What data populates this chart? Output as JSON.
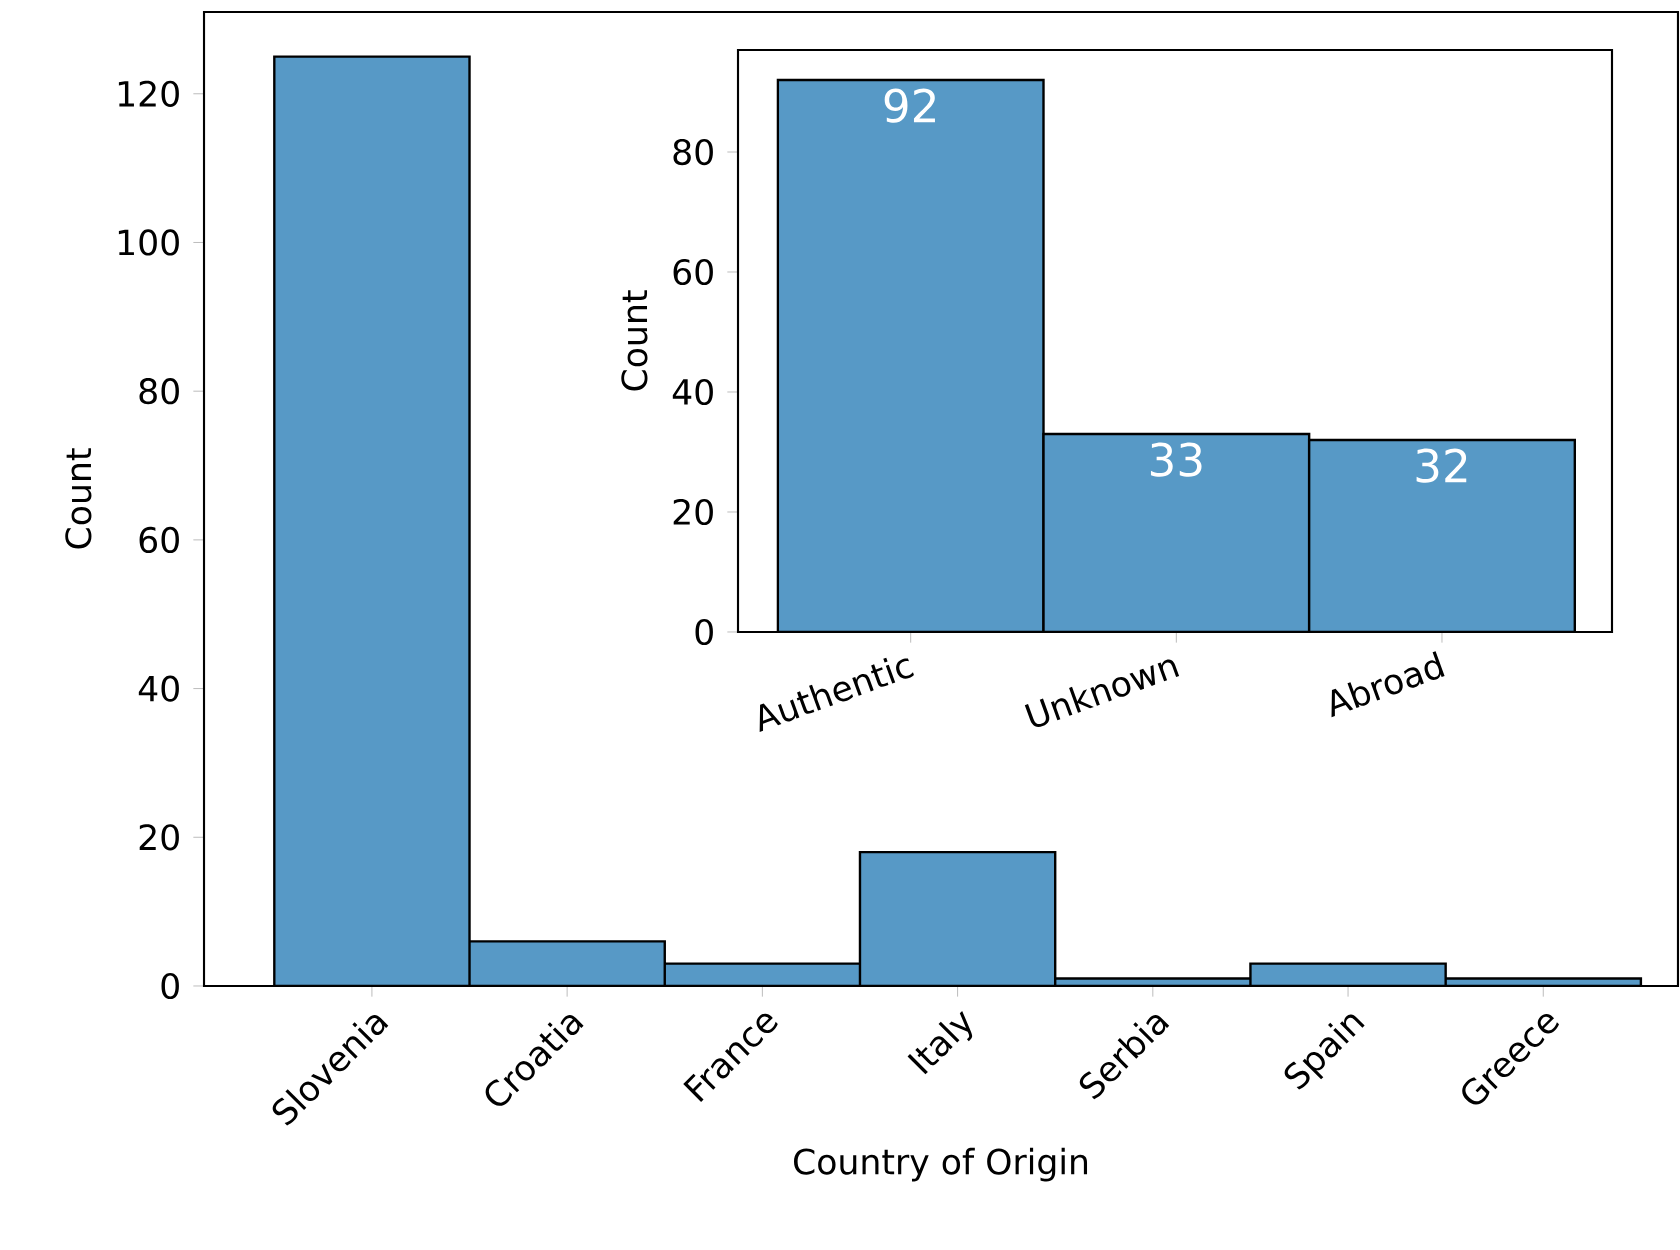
{
  "chart_data": [
    {
      "type": "bar",
      "xlabel": "Country of Origin",
      "ylabel": "Count",
      "categories": [
        "Slovenia",
        "Croatia",
        "France",
        "Italy",
        "Serbia",
        "Spain",
        "Greece"
      ],
      "values": [
        125,
        6,
        3,
        18,
        1,
        3,
        1
      ],
      "color": "#5799c6",
      "ylim": [
        0,
        131
      ],
      "yticks": [
        0,
        20,
        40,
        60,
        80,
        100,
        120
      ]
    },
    {
      "type": "bar",
      "ylabel": "Count",
      "categories": [
        "Authentic",
        "Unknown",
        "Abroad"
      ],
      "values": [
        92,
        33,
        32
      ],
      "color": "#5799c6",
      "ylim": [
        0,
        97
      ],
      "yticks": [
        0,
        20,
        40,
        60,
        80
      ],
      "data_labels": true
    }
  ]
}
